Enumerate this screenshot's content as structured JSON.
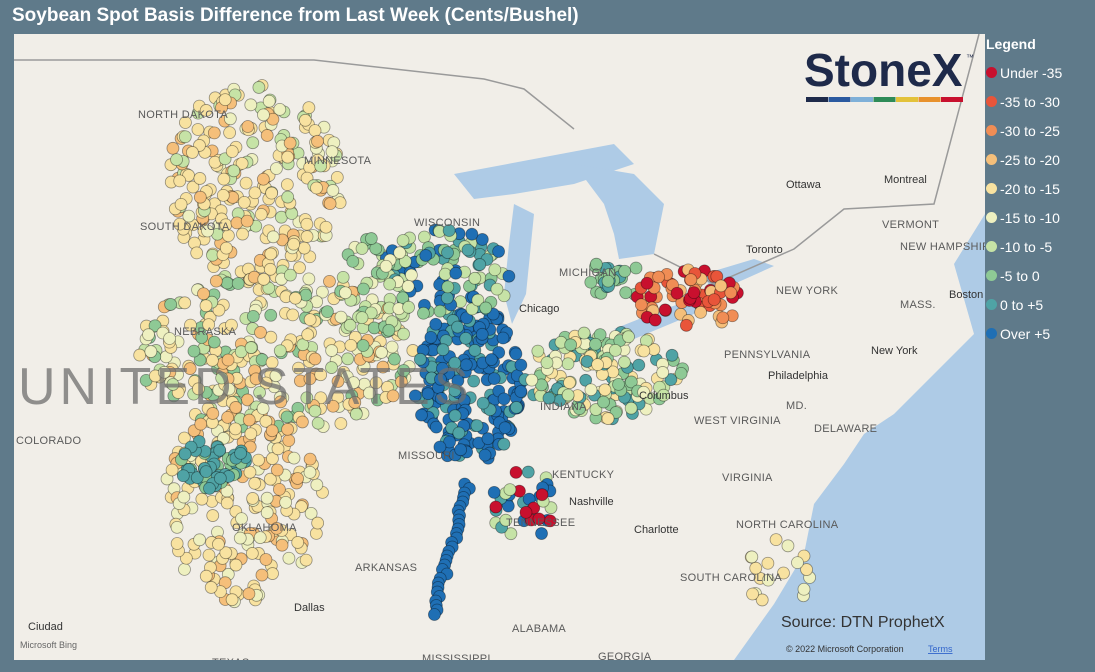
{
  "header": {
    "title": "Soybean Spot Basis Difference from Last Week (Cents/Bushel)"
  },
  "legend": {
    "title": "Legend",
    "items": [
      {
        "label": "Under -35",
        "color": "#c8102e"
      },
      {
        "label": "-35 to -30",
        "color": "#e8553a"
      },
      {
        "label": "-30 to -25",
        "color": "#f08d55"
      },
      {
        "label": "-25 to -20",
        "color": "#f5bf7a"
      },
      {
        "label": "-20 to -15",
        "color": "#f8e2a0"
      },
      {
        "label": "-15 to -10",
        "color": "#eef0c0"
      },
      {
        "label": "-10 to -5",
        "color": "#c6e3a6"
      },
      {
        "label": "-5 to 0",
        "color": "#8ec995"
      },
      {
        "label": "0 to +5",
        "color": "#4fa3a5"
      },
      {
        "label": "Over +5",
        "color": "#1f6fb4"
      }
    ]
  },
  "map": {
    "country_label": "UNITED STATES",
    "states": [
      "NORTH DAKOTA",
      "MINNESOTA",
      "SOUTH DAKOTA",
      "WISCONSIN",
      "NEBRASKA",
      "COLORADO",
      "MISSOURI",
      "KENTUCKY",
      "TENNESSEE",
      "OKLAHOMA",
      "ARKANSAS",
      "ALABAMA",
      "GEORGIA",
      "MISSISSIPPI",
      "TEXAS",
      "SOUTH CAROLINA",
      "NORTH CAROLINA",
      "VIRGINIA",
      "WEST VIRGINIA",
      "PENNSYLVANIA",
      "NEW YORK",
      "VERMONT",
      "NEW HAMPSHIRE",
      "MASS.",
      "MD.",
      "DELAWARE",
      "INDIANA",
      "MICHIGAN"
    ],
    "cities": [
      "Ottawa",
      "Montreal",
      "Toronto",
      "Chicago",
      "Columbus",
      "Philadelphia",
      "New York",
      "Boston",
      "Nashville",
      "Charlotte",
      "Dallas",
      "Ciudad"
    ]
  },
  "brand": {
    "logo": "StoneX",
    "trademark": "™"
  },
  "footer": {
    "source": "Source: DTN ProphetX",
    "bing": "Microsoft Bing",
    "copyright": "© 2022 Microsoft Corporation",
    "terms": "Terms"
  }
}
